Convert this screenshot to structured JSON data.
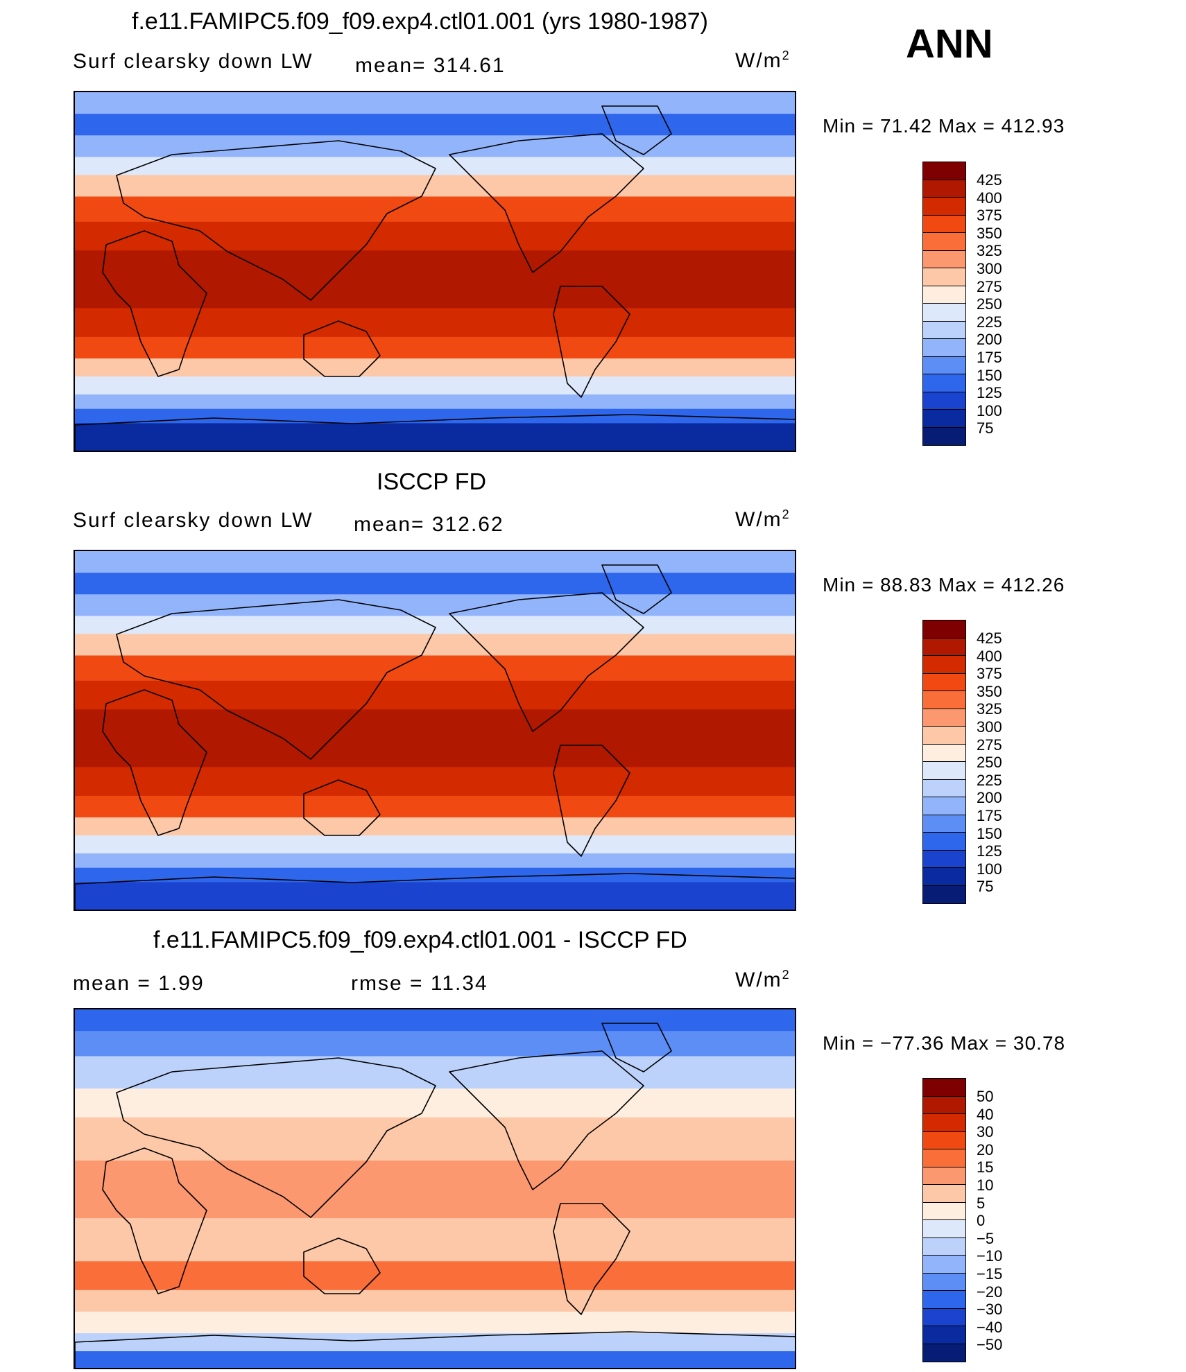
{
  "season": "ANN",
  "panels": [
    {
      "title": "f.e11.FAMIPC5.f09_f09.exp4.ctl01.001 (yrs 1980-1987)",
      "left_label": "Surf clearsky down LW",
      "mid_label": "mean= 314.61",
      "units": "W/m",
      "units_sup": "2",
      "range": "Min =   71.42 Max = 412.93",
      "colorbar": {
        "labels": [
          "425",
          "400",
          "375",
          "350",
          "325",
          "300",
          "275",
          "250",
          "225",
          "200",
          "175",
          "150",
          "125",
          "100",
          "75"
        ],
        "colors": [
          "#7f0000",
          "#b01800",
          "#d42a00",
          "#f04a12",
          "#fa6e3a",
          "#fc9870",
          "#fdc8a8",
          "#fdeee0",
          "#dde9fa",
          "#bcd2fb",
          "#92b4fb",
          "#5d8ef5",
          "#2e66ec",
          "#1a43d0",
          "#0a2aa0",
          "#061c75"
        ]
      },
      "map_colors": {
        "polar": "#0a2aa0",
        "cold": "#2e66ec",
        "mid": "#92b4fb",
        "cool": "#dde9fa",
        "warm": "#fdc8a8",
        "hot": "#f04a12",
        "hotter": "#d42a00",
        "core": "#b01800"
      }
    },
    {
      "title": "ISCCP FD",
      "left_label": "Surf clearsky down LW",
      "mid_label": "mean= 312.62",
      "units": "W/m",
      "units_sup": "2",
      "range": "Min =   88.83 Max = 412.26",
      "colorbar": {
        "labels": [
          "425",
          "400",
          "375",
          "350",
          "325",
          "300",
          "275",
          "250",
          "225",
          "200",
          "175",
          "150",
          "125",
          "100",
          "75"
        ],
        "colors": [
          "#7f0000",
          "#b01800",
          "#d42a00",
          "#f04a12",
          "#fa6e3a",
          "#fc9870",
          "#fdc8a8",
          "#fdeee0",
          "#dde9fa",
          "#bcd2fb",
          "#92b4fb",
          "#5d8ef5",
          "#2e66ec",
          "#1a43d0",
          "#0a2aa0",
          "#061c75"
        ]
      },
      "map_colors": {
        "polar": "#1a43d0",
        "cold": "#2e66ec",
        "mid": "#92b4fb",
        "cool": "#dde9fa",
        "warm": "#fdc8a8",
        "hot": "#f04a12",
        "hotter": "#d42a00",
        "core": "#b01800"
      }
    },
    {
      "title": "f.e11.FAMIPC5.f09_f09.exp4.ctl01.001 - ISCCP FD",
      "left_label": "mean =    1.99",
      "mid_label": "rmse =    11.34",
      "units": "W/m",
      "units_sup": "2",
      "range": "Min = −77.36 Max =   30.78",
      "colorbar": {
        "labels": [
          "50",
          "40",
          "30",
          "20",
          "15",
          "10",
          "5",
          "0",
          "−5",
          "−10",
          "−15",
          "−20",
          "−30",
          "−40",
          "−50"
        ],
        "colors": [
          "#7f0000",
          "#b01800",
          "#d42a00",
          "#f04a12",
          "#fa6e3a",
          "#fc9870",
          "#fdc8a8",
          "#fdeee0",
          "#dde9fa",
          "#bcd2fb",
          "#92b4fb",
          "#5d8ef5",
          "#2e66ec",
          "#1a43d0",
          "#0a2aa0",
          "#061c75"
        ]
      },
      "map_colors": {
        "polar": "#2e66ec",
        "cold": "#5d8ef5",
        "mid": "#bcd2fb",
        "cool": "#fdeee0",
        "warm": "#fdc8a8",
        "hot": "#fc9870",
        "hotter": "#fa6e3a",
        "core": "#fc9870"
      }
    }
  ]
}
